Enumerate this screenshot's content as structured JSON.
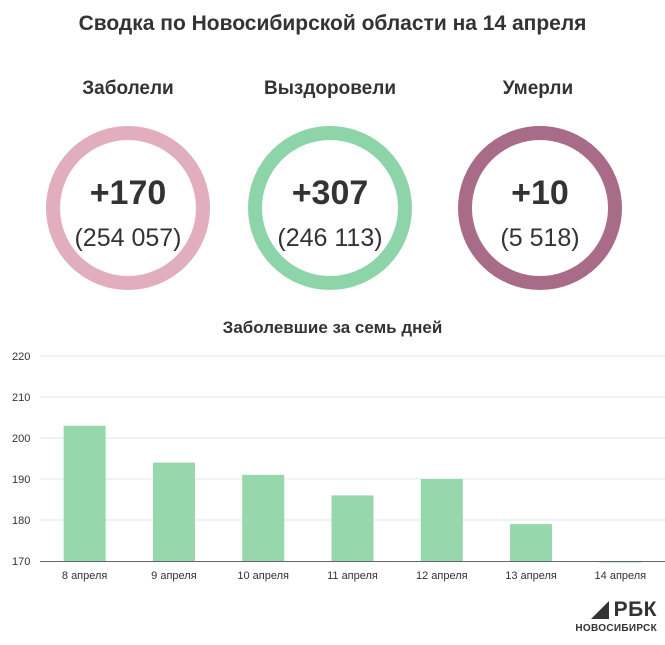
{
  "title": "Сводка по Новосибирской области на 14 апреля",
  "stats": [
    {
      "label": "Заболели",
      "delta": "+170",
      "total": "(254 057)",
      "color": "#e0aebc"
    },
    {
      "label": "Выздоровели",
      "delta": "+307",
      "total": "(246 113)",
      "color": "#8dd5a8"
    },
    {
      "label": "Умерли",
      "delta": "+10",
      "total": "(5 518)",
      "color": "#a86c88"
    }
  ],
  "logo": {
    "brand": "РБК",
    "city": "НОВОСИБИРСК"
  },
  "chart_data": {
    "type": "bar",
    "title": "Заболевшие за семь дней",
    "categories": [
      "8 апреля",
      "9 апреля",
      "10 апреля",
      "11 апреля",
      "12 апреля",
      "13 апреля",
      "14 апреля"
    ],
    "values": [
      203,
      194,
      191,
      186,
      190,
      179,
      170
    ],
    "ylim": [
      170,
      220
    ],
    "yticks": [
      170,
      180,
      190,
      200,
      210,
      220
    ],
    "grid": true,
    "bar_color": "#96d7ab"
  }
}
